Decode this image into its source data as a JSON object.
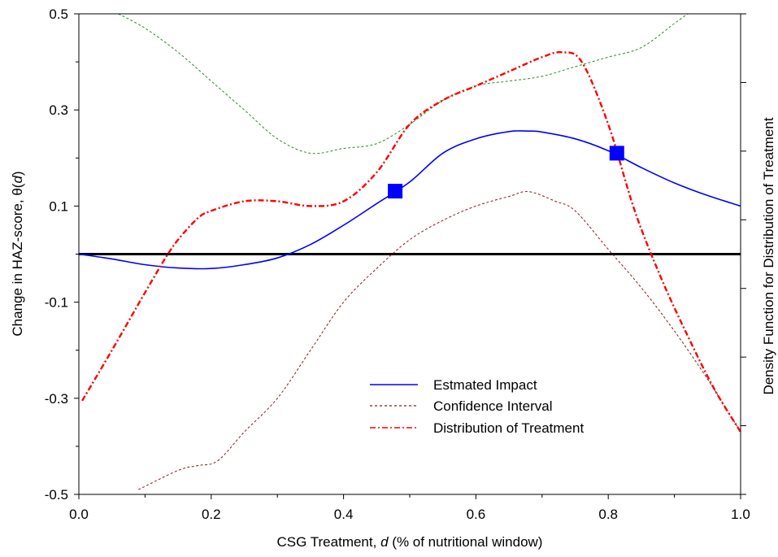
{
  "chart_data": {
    "type": "line",
    "xlabel_prefix": "CSG Treatment,",
    "xlabel_var": "d",
    "xlabel_suffix": "(% of nutritional window)",
    "ylabel_prefix": "Change in HAZ-score,",
    "ylabel_func": "θ(",
    "ylabel_var": "d",
    "ylabel_close": ")",
    "y2label": "Density Function for Distribution of Treatment",
    "xlim": [
      0,
      1
    ],
    "ylim": [
      -0.5,
      0.5
    ],
    "x_ticks": [
      "0.0",
      "0.2",
      "0.4",
      "0.6",
      "0.8",
      "1.0"
    ],
    "y_ticks": [
      "-0.5",
      "-0.3",
      "-0.1",
      "0.1",
      "0.3",
      "0.5"
    ],
    "reference_line_y": 0,
    "legend_position": "bottom-center",
    "colors": {
      "impact": "#0000ff",
      "ci": "#8b1a1a",
      "ci_upper": "#2a8a2a",
      "distribution": "#ff0000",
      "marker": "#0000ff",
      "reference": "#000000"
    },
    "series": [
      {
        "name": "Estmated Impact",
        "style": "solid",
        "x": [
          0.0,
          0.05,
          0.1,
          0.15,
          0.2,
          0.25,
          0.3,
          0.35,
          0.4,
          0.45,
          0.5,
          0.55,
          0.6,
          0.65,
          0.68,
          0.7,
          0.75,
          0.8,
          0.85,
          0.9,
          0.95,
          1.0
        ],
        "y": [
          0.0,
          -0.01,
          -0.022,
          -0.029,
          -0.03,
          -0.022,
          -0.008,
          0.02,
          0.06,
          0.105,
          0.15,
          0.21,
          0.24,
          0.255,
          0.256,
          0.254,
          0.24,
          0.215,
          0.18,
          0.148,
          0.122,
          0.1
        ]
      },
      {
        "name": "Confidence Interval",
        "style": "dashed",
        "x": [
          0.09,
          0.15,
          0.18,
          0.21,
          0.25,
          0.3,
          0.35,
          0.4,
          0.45,
          0.5,
          0.55,
          0.6,
          0.65,
          0.68,
          0.72,
          0.75,
          0.8,
          0.85,
          0.9,
          0.95,
          1.0
        ],
        "y": [
          -0.49,
          -0.45,
          -0.44,
          -0.43,
          -0.37,
          -0.3,
          -0.2,
          -0.1,
          -0.03,
          0.03,
          0.07,
          0.1,
          0.12,
          0.13,
          0.11,
          0.09,
          0.01,
          -0.07,
          -0.16,
          -0.26,
          -0.37
        ]
      },
      {
        "legend": false,
        "style": "dashed",
        "x": [
          0.06,
          0.1,
          0.15,
          0.2,
          0.25,
          0.3,
          0.35,
          0.4,
          0.45,
          0.5,
          0.55,
          0.6,
          0.65,
          0.7,
          0.75,
          0.8,
          0.85,
          0.9,
          0.92
        ],
        "y": [
          0.5,
          0.47,
          0.42,
          0.36,
          0.3,
          0.24,
          0.21,
          0.22,
          0.23,
          0.27,
          0.32,
          0.35,
          0.36,
          0.37,
          0.39,
          0.41,
          0.43,
          0.48,
          0.5
        ]
      },
      {
        "name": "Distribution of Treatment",
        "style": "dashdot",
        "x": [
          0.005,
          0.05,
          0.1,
          0.13,
          0.15,
          0.18,
          0.2,
          0.25,
          0.3,
          0.35,
          0.4,
          0.45,
          0.5,
          0.55,
          0.6,
          0.65,
          0.7,
          0.73,
          0.76,
          0.8,
          0.84,
          0.88,
          0.92,
          0.96,
          1.0
        ],
        "y": [
          -0.305,
          -0.2,
          -0.08,
          -0.01,
          0.03,
          0.075,
          0.09,
          0.11,
          0.11,
          0.1,
          0.11,
          0.17,
          0.27,
          0.32,
          0.35,
          0.38,
          0.41,
          0.42,
          0.4,
          0.27,
          0.09,
          -0.05,
          -0.17,
          -0.28,
          -0.37
        ]
      }
    ],
    "markers": [
      {
        "x": 0.478,
        "y": 0.131
      },
      {
        "x": 0.813,
        "y": 0.21
      }
    ]
  }
}
